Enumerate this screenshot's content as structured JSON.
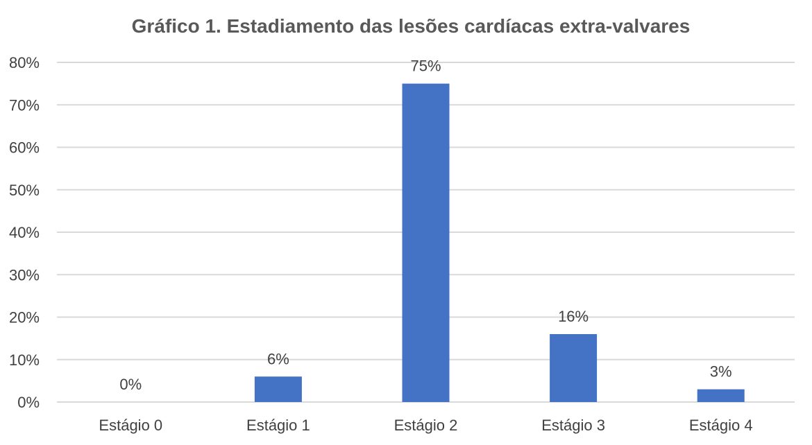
{
  "chart_data": {
    "type": "bar",
    "title": "Gráfico 1. Estadiamento das lesões cardíacas extra-valvares",
    "categories": [
      "Estágio 0",
      "Estágio 1",
      "Estágio 2",
      "Estágio 3",
      "Estágio 4"
    ],
    "values": [
      0,
      6,
      75,
      16,
      3
    ],
    "data_labels": [
      "0%",
      "6%",
      "75%",
      "16%",
      "3%"
    ],
    "yticks": [
      "0%",
      "10%",
      "20%",
      "30%",
      "40%",
      "50%",
      "60%",
      "70%",
      "80%"
    ],
    "ylim": [
      0,
      80
    ],
    "xlabel": "",
    "ylabel": "",
    "grid": true,
    "bar_color": "#4472C4"
  }
}
